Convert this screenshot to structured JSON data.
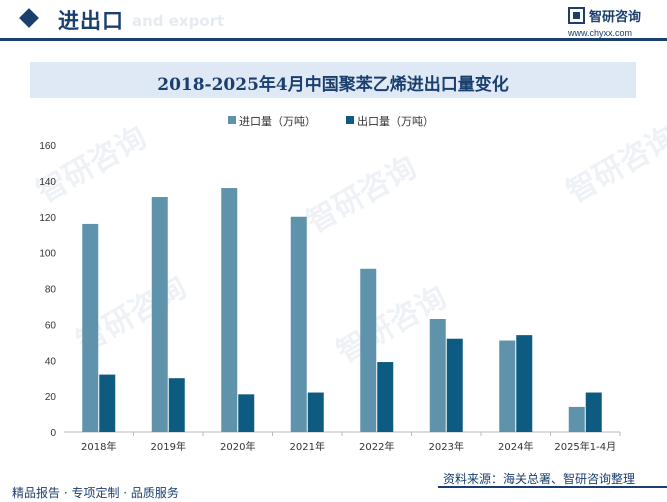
{
  "header": {
    "title": "进出口",
    "subtitle": "and export",
    "brand_name": "智研咨询",
    "brand_url": "www.chyxx.com"
  },
  "watermark": "智研咨询",
  "footer": {
    "left": "精品报告 · 专项定制 · 品质服务",
    "source": "资料来源：海关总署、智研咨询整理"
  },
  "colors": {
    "import": "#5f93ac",
    "export": "#0d5b80",
    "brand": "#1a3f6e"
  },
  "chart_data": {
    "type": "bar",
    "title": "2018-2025年4月中国聚苯乙烯进出口量变化",
    "categories": [
      "2018年",
      "2019年",
      "2020年",
      "2021年",
      "2022年",
      "2023年",
      "2024年",
      "2025年1-4月"
    ],
    "series": [
      {
        "name": "进口量（万吨）",
        "values": [
          116,
          131,
          136,
          120,
          91,
          63,
          51,
          14
        ]
      },
      {
        "name": "出口量（万吨）",
        "values": [
          32,
          30,
          21,
          22,
          39,
          52,
          54,
          22
        ]
      }
    ],
    "ylim": [
      0,
      160
    ],
    "yticks": [
      0,
      20,
      40,
      60,
      80,
      100,
      120,
      140,
      160
    ],
    "legend": "top-center",
    "grid": false
  }
}
